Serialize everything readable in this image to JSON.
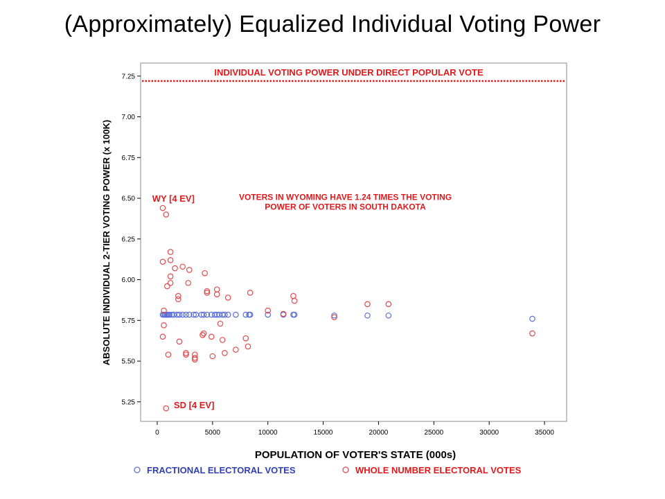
{
  "page": {
    "title": "(Approximately) Equalized Individual Voting Power"
  },
  "colors": {
    "fractional": "#5a6fd6",
    "whole": "#e04a4a",
    "reference_line": "#e0191c",
    "annotation": "#e0191c",
    "legend_blue": "#2f3fb3"
  },
  "chart_data": {
    "type": "scatter",
    "xlabel": "POPULATION OF VOTER'S STATE (000s)",
    "ylabel": "ABSOLUTE INDIVIDUAL 2-TIER VOTING POWER (x 100K)",
    "xlim": [
      -1500,
      37000
    ],
    "ylim": [
      5.13,
      7.33
    ],
    "xticks": [
      0,
      5000,
      10000,
      15000,
      20000,
      25000,
      30000,
      35000
    ],
    "yticks": [
      5.25,
      5.5,
      5.75,
      6.0,
      6.25,
      6.5,
      6.75,
      7.0,
      7.25
    ],
    "grid": false,
    "legend_position": "bottom",
    "reference_line": {
      "y": 7.22,
      "label": "INDIVIDUAL VOTING POWER UNDER DIRECT POPULAR VOTE"
    },
    "annotations": [
      {
        "text": "WY [4 EV]",
        "x": -450,
        "y": 6.48
      },
      {
        "text": "SD [4 EV]",
        "x": 1500,
        "y": 5.21
      },
      {
        "text": "VOTERS IN WYOMING HAVE 1.24 TIMES THE VOTING",
        "x": 17000,
        "y": 6.49
      },
      {
        "text": "POWER  OF VOTERS IN SOUTH DAKOTA",
        "x": 17000,
        "y": 6.43
      }
    ],
    "series": [
      {
        "name": "FRACTIONAL ELECTORAL VOTES",
        "points": [
          [
            500,
            5.785
          ],
          [
            600,
            5.785
          ],
          [
            700,
            5.785
          ],
          [
            800,
            5.785
          ],
          [
            900,
            5.785
          ],
          [
            1000,
            5.785
          ],
          [
            1100,
            5.785
          ],
          [
            1300,
            5.785
          ],
          [
            1500,
            5.785
          ],
          [
            1800,
            5.785
          ],
          [
            2000,
            5.785
          ],
          [
            2300,
            5.785
          ],
          [
            2600,
            5.785
          ],
          [
            2900,
            5.785
          ],
          [
            3300,
            5.785
          ],
          [
            3500,
            5.785
          ],
          [
            4000,
            5.785
          ],
          [
            4200,
            5.785
          ],
          [
            4500,
            5.785
          ],
          [
            4900,
            5.785
          ],
          [
            5200,
            5.785
          ],
          [
            5400,
            5.785
          ],
          [
            5600,
            5.785
          ],
          [
            5900,
            5.785
          ],
          [
            6100,
            5.785
          ],
          [
            6400,
            5.785
          ],
          [
            7100,
            5.785
          ],
          [
            8000,
            5.785
          ],
          [
            8300,
            5.785
          ],
          [
            8400,
            5.785
          ],
          [
            10000,
            5.785
          ],
          [
            11400,
            5.785
          ],
          [
            12300,
            5.785
          ],
          [
            12400,
            5.785
          ],
          [
            16000,
            5.78
          ],
          [
            19000,
            5.78
          ],
          [
            20900,
            5.78
          ],
          [
            33900,
            5.76
          ]
        ]
      },
      {
        "name": "WHOLE NUMBER ELECTORAL VOTES",
        "points": [
          [
            500,
            6.44
          ],
          [
            800,
            6.4
          ],
          [
            500,
            6.11
          ],
          [
            1200,
            6.17
          ],
          [
            1200,
            6.12
          ],
          [
            1600,
            6.07
          ],
          [
            1200,
            6.02
          ],
          [
            1200,
            5.98
          ],
          [
            900,
            5.96
          ],
          [
            2300,
            6.08
          ],
          [
            2900,
            6.06
          ],
          [
            2800,
            5.98
          ],
          [
            1900,
            5.9
          ],
          [
            1900,
            5.88
          ],
          [
            4300,
            6.04
          ],
          [
            4500,
            5.93
          ],
          [
            4500,
            5.92
          ],
          [
            5400,
            5.94
          ],
          [
            5400,
            5.91
          ],
          [
            6400,
            5.89
          ],
          [
            8400,
            5.92
          ],
          [
            12300,
            5.9
          ],
          [
            12400,
            5.87
          ],
          [
            10000,
            5.81
          ],
          [
            11400,
            5.79
          ],
          [
            16000,
            5.77
          ],
          [
            19000,
            5.85
          ],
          [
            20900,
            5.85
          ],
          [
            600,
            5.81
          ],
          [
            600,
            5.72
          ],
          [
            5700,
            5.73
          ],
          [
            500,
            5.65
          ],
          [
            4200,
            5.67
          ],
          [
            4100,
            5.66
          ],
          [
            4900,
            5.65
          ],
          [
            5900,
            5.63
          ],
          [
            2000,
            5.62
          ],
          [
            8000,
            5.64
          ],
          [
            8200,
            5.59
          ],
          [
            7100,
            5.57
          ],
          [
            6100,
            5.55
          ],
          [
            2600,
            5.55
          ],
          [
            2600,
            5.54
          ],
          [
            1000,
            5.54
          ],
          [
            3400,
            5.54
          ],
          [
            3400,
            5.52
          ],
          [
            5000,
            5.53
          ],
          [
            3400,
            5.51
          ],
          [
            33900,
            5.67
          ],
          [
            800,
            5.21
          ]
        ]
      }
    ]
  }
}
